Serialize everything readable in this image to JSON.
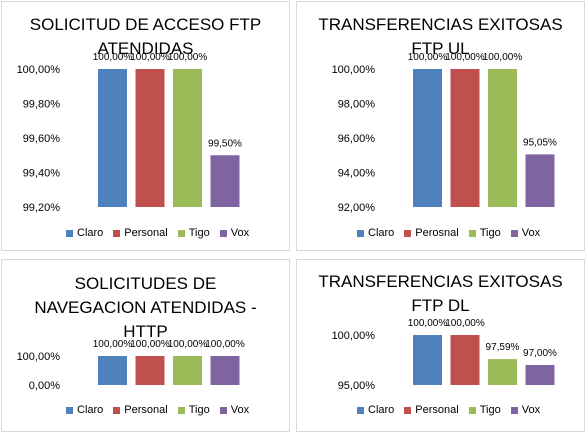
{
  "chart_data": [
    {
      "type": "bar",
      "title": "SOLICITUD DE ACCESO FTP ATENDIDAS",
      "title_lines": [
        "SOLICITUD DE ACCESO FTP",
        "ATENDIDAS"
      ],
      "categories": [
        "Claro",
        "Personal",
        "Tigo",
        "Vox"
      ],
      "values": [
        100.0,
        100.0,
        100.0,
        99.5
      ],
      "data_labels": [
        "100,00%",
        "100,00%",
        "100,00%",
        "99,50%"
      ],
      "ylim": [
        99.2,
        100.0
      ],
      "yticks": [
        99.2,
        99.4,
        99.6,
        99.8,
        100.0
      ],
      "ytick_labels": [
        "99,20%",
        "99,40%",
        "99,60%",
        "99,80%",
        "100,00%"
      ],
      "legend": [
        "Claro",
        "Personal",
        "Tigo",
        "Vox"
      ],
      "legend_position": "bottom",
      "grid": false
    },
    {
      "type": "bar",
      "title": "TRANSFERENCIAS EXITOSAS FTP UL",
      "title_lines": [
        "TRANSFERENCIAS EXITOSAS",
        "FTP UL"
      ],
      "categories": [
        "Claro",
        "Perosnal",
        "Tigo",
        "Vox"
      ],
      "values": [
        100.0,
        100.0,
        100.0,
        95.05
      ],
      "data_labels": [
        "100,00%",
        "100,00%",
        "100,00%",
        "95,05%"
      ],
      "ylim": [
        92.0,
        100.0
      ],
      "yticks": [
        92,
        94,
        96,
        98,
        100
      ],
      "ytick_labels": [
        "92,00%",
        "94,00%",
        "96,00%",
        "98,00%",
        "100,00%"
      ],
      "legend": [
        "Claro",
        "Perosnal",
        "Tigo",
        "Vox"
      ],
      "legend_position": "bottom",
      "grid": false
    },
    {
      "type": "bar",
      "title": "SOLICITUDES DE NAVEGACION ATENDIDAS - HTTP",
      "title_lines": [
        "SOLICITUDES DE",
        "NAVEGACION ATENDIDAS -",
        "HTTP"
      ],
      "categories": [
        "Claro",
        "Personal",
        "Tigo",
        "Vox"
      ],
      "values": [
        100.0,
        100.0,
        100.0,
        100.0
      ],
      "data_labels": [
        "100,00%",
        "100,00%",
        "100,00%",
        "100,00%"
      ],
      "ylim": [
        0.0,
        100.0
      ],
      "yticks": [
        0,
        100
      ],
      "ytick_labels": [
        "0,00%",
        "100,00%"
      ],
      "legend": [
        "Claro",
        "Personal",
        "Tigo",
        "Vox"
      ],
      "legend_position": "bottom",
      "grid": false
    },
    {
      "type": "bar",
      "title": "TRANSFERENCIAS EXITOSAS FTP DL",
      "title_lines": [
        "TRANSFERENCIAS EXITOSAS",
        "FTP DL"
      ],
      "categories": [
        "Claro",
        "Personal",
        "Tigo",
        "Vox"
      ],
      "values": [
        100.0,
        100.0,
        97.59,
        97.0
      ],
      "data_labels": [
        "100,00%",
        "100,00%",
        "97,59%",
        "97,00%"
      ],
      "ylim": [
        95.0,
        100.0
      ],
      "yticks": [
        95,
        100
      ],
      "ytick_labels": [
        "95,00%",
        "100,00%"
      ],
      "legend": [
        "Claro",
        "Personal",
        "Tigo",
        "Vox"
      ],
      "legend_position": "bottom",
      "grid": false
    }
  ],
  "colors": [
    "#4f81bd",
    "#c0504d",
    "#9bbb59",
    "#8064a2"
  ]
}
